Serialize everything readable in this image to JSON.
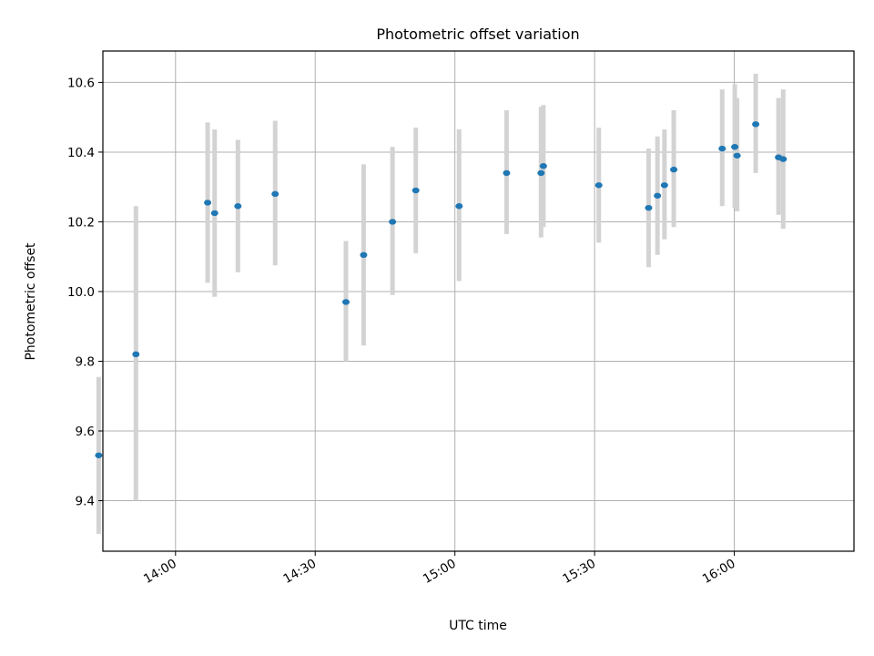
{
  "chart_data": {
    "type": "scatter",
    "title": "Photometric offset variation",
    "xlabel": "UTC time",
    "ylabel": "Photometric offset",
    "x_ticks": [
      "14:00",
      "14:30",
      "15:00",
      "15:30",
      "16:00"
    ],
    "y_ticks": [
      "9.4",
      "9.6",
      "9.8",
      "10.0",
      "10.2",
      "10.4",
      "10.6"
    ],
    "xlim": [
      "13:44:24",
      "16:25:42"
    ],
    "ylim": [
      9.255,
      10.69
    ],
    "grid": true,
    "point_color": "#1f77b4",
    "errorbar_color": "#d3d3d3",
    "series": [
      {
        "x": [
          "13:43:30",
          "13:51:30",
          "14:06:54",
          "14:08:24",
          "14:13:24",
          "14:21:24",
          "14:36:36",
          "14:40:24",
          "14:46:36",
          "14:51:36",
          "15:00:54",
          "15:11:06",
          "15:18:30",
          "15:19:00",
          "15:30:54",
          "15:41:36",
          "15:43:30",
          "15:45:00",
          "15:47:00",
          "15:57:24",
          "16:00:06",
          "16:00:36",
          "16:04:36",
          "16:09:30",
          "16:10:30"
        ],
        "y": [
          9.53,
          9.82,
          10.255,
          10.225,
          10.245,
          10.28,
          9.97,
          10.105,
          10.2,
          10.29,
          10.245,
          10.34,
          10.34,
          10.36,
          10.305,
          10.24,
          10.275,
          10.305,
          10.35,
          10.41,
          10.415,
          10.39,
          10.48,
          10.385,
          10.38
        ],
        "ylow": [
          9.305,
          9.4,
          10.025,
          9.985,
          10.055,
          10.075,
          9.8,
          9.845,
          9.99,
          10.11,
          10.03,
          10.165,
          10.155,
          10.185,
          10.14,
          10.07,
          10.105,
          10.15,
          10.185,
          10.245,
          10.24,
          10.23,
          10.34,
          10.22,
          10.18
        ],
        "yhigh": [
          9.755,
          10.245,
          10.485,
          10.465,
          10.435,
          10.49,
          10.145,
          10.365,
          10.415,
          10.47,
          10.465,
          10.52,
          10.53,
          10.535,
          10.47,
          10.41,
          10.445,
          10.465,
          10.52,
          10.58,
          10.595,
          10.555,
          10.625,
          10.555,
          10.58
        ]
      }
    ]
  }
}
